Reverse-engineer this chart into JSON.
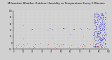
{
  "title": "Milwaukee Weather Outdoor Humidity vs Temperature Every 5 Minutes",
  "title_fontsize": 2.8,
  "bg_color": "#d0d0d0",
  "plot_bg_color": "#d0d0d0",
  "grid_color": "#ffffff",
  "xlim": [
    0,
    100
  ],
  "ylim": [
    -20,
    100
  ],
  "tick_fontsize": 1.8,
  "blue_color": "#0000cc",
  "red_color": "#cc0000",
  "dot_size": 0.15,
  "grid_linewidth": 0.25,
  "spine_linewidth": 0.3
}
